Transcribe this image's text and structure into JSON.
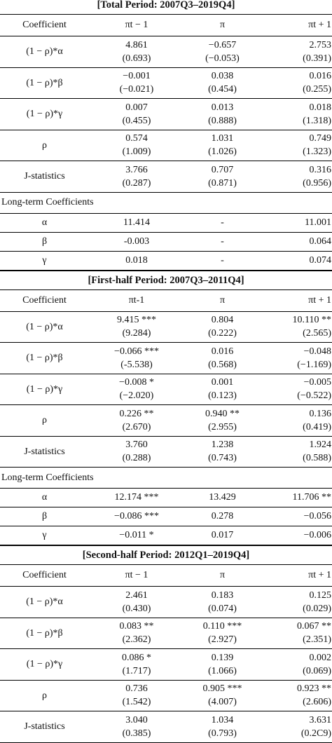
{
  "sections": [
    {
      "title": "[Total Period: 2007Q3–2019Q4]",
      "header": [
        "Coefficient",
        "πt − 1",
        "π",
        "πt + 1"
      ],
      "rows": [
        {
          "label": "(1 − ρ)*α",
          "c1": [
            "4.861",
            "(0.693)"
          ],
          "c2": [
            "−0.657",
            "(−0.053)"
          ],
          "c3": [
            "2.753",
            "(0.391)"
          ]
        },
        {
          "label": "(1 − ρ)*β",
          "c1": [
            "−0.001",
            "(−0.021)"
          ],
          "c2": [
            "0.038",
            "(0.454)"
          ],
          "c3": [
            "0.016",
            "(0.255)"
          ]
        },
        {
          "label": "(1 − ρ)*γ",
          "c1": [
            "0.007",
            "(0.455)"
          ],
          "c2": [
            "0.013",
            "(0.888)"
          ],
          "c3": [
            "0.018",
            "(1.318)"
          ]
        },
        {
          "label": "ρ",
          "c1": [
            "0.574",
            "(1.009)"
          ],
          "c2": [
            "1.031",
            "(1.026)"
          ],
          "c3": [
            "0.749",
            "(1.323)"
          ]
        },
        {
          "label": "J-statistics",
          "c1": [
            "3.766",
            "(0.287)"
          ],
          "c2": [
            "0.707",
            "(0.871)"
          ],
          "c3": [
            "0.316",
            "(0.956)"
          ]
        }
      ],
      "long_term_title": "Long-term Coefficients",
      "long_term": [
        {
          "label": "α",
          "c1": "11.414",
          "c2": "-",
          "c3": "11.001"
        },
        {
          "label": "β",
          "c1": "-0.003",
          "c2": "-",
          "c3": "0.064"
        },
        {
          "label": "γ",
          "c1": "0.018",
          "c2": "-",
          "c3": "0.074"
        }
      ]
    },
    {
      "title": "[First-half Period: 2007Q3–2011Q4]",
      "header": [
        "Coefficient",
        "πt-1",
        "π",
        "πt + 1"
      ],
      "rows": [
        {
          "label": "(1 − ρ)*α",
          "c1": [
            "9.415 ***",
            "(9.284)"
          ],
          "c2": [
            "0.804",
            "(0.222)"
          ],
          "c3": [
            "10.110 **",
            "(2.565)"
          ]
        },
        {
          "label": "(1 − ρ)*β",
          "c1": [
            "−0.066 ***",
            "(-5.538)"
          ],
          "c2": [
            "0.016",
            "(0.568)"
          ],
          "c3": [
            "−0.048",
            "(−1.169)"
          ]
        },
        {
          "label": "(1 − ρ)*γ",
          "c1": [
            "−0.008 *",
            "(−2.020)"
          ],
          "c2": [
            "0.001",
            "(0.123)"
          ],
          "c3": [
            "−0.005",
            "(−0.522)"
          ]
        },
        {
          "label": "ρ",
          "c1": [
            "0.226 **",
            "(2.670)"
          ],
          "c2": [
            "0.940 **",
            "(2.955)"
          ],
          "c3": [
            "0.136",
            "(0.419)"
          ]
        },
        {
          "label": "J-statistics",
          "c1": [
            "3.760",
            "(0.288)"
          ],
          "c2": [
            "1.238",
            "(0.743)"
          ],
          "c3": [
            "1.924",
            "(0.588)"
          ]
        }
      ],
      "long_term_title": "Long-term Coefficients",
      "long_term": [
        {
          "label": "α",
          "c1": "12.174 ***",
          "c2": "13.429",
          "c3": "11.706 **"
        },
        {
          "label": "β",
          "c1": "−0.086 ***",
          "c2": "0.278",
          "c3": "−0.056"
        },
        {
          "label": "γ",
          "c1": "−0.011 *",
          "c2": "0.017",
          "c3": "−0.006"
        }
      ]
    },
    {
      "title": "[Second-half Period: 2012Q1–2019Q4]",
      "header": [
        "Coefficient",
        "πt − 1",
        "π",
        "πt + 1"
      ],
      "rows": [
        {
          "label": "(1 − ρ)*α",
          "c1": [
            "2.461",
            "(0.430)"
          ],
          "c2": [
            "0.183",
            "(0.074)"
          ],
          "c3": [
            "0.125",
            "(0.029)"
          ]
        },
        {
          "label": "(1 − ρ)*β",
          "c1": [
            "0.083 **",
            "(2.362)"
          ],
          "c2": [
            "0.110 ***",
            "(2.927)"
          ],
          "c3": [
            "0.067 **",
            "(2.351)"
          ]
        },
        {
          "label": "(1 − ρ)*γ",
          "c1": [
            "0.086 *",
            "(1.717)"
          ],
          "c2": [
            "0.139",
            "(1.066)"
          ],
          "c3": [
            "0.002",
            "(0.069)"
          ]
        },
        {
          "label": "ρ",
          "c1": [
            "0.736",
            "(1.542)"
          ],
          "c2": [
            "0.905 ***",
            "(4.007)"
          ],
          "c3": [
            "0.923 **",
            "(2.606)"
          ]
        },
        {
          "label": "J-statistics",
          "c1": [
            "3.040",
            "(0.385)"
          ],
          "c2": [
            "1.034",
            "(0.793)"
          ],
          "c3": [
            "3.631",
            "(0.2C9)"
          ]
        }
      ]
    }
  ]
}
